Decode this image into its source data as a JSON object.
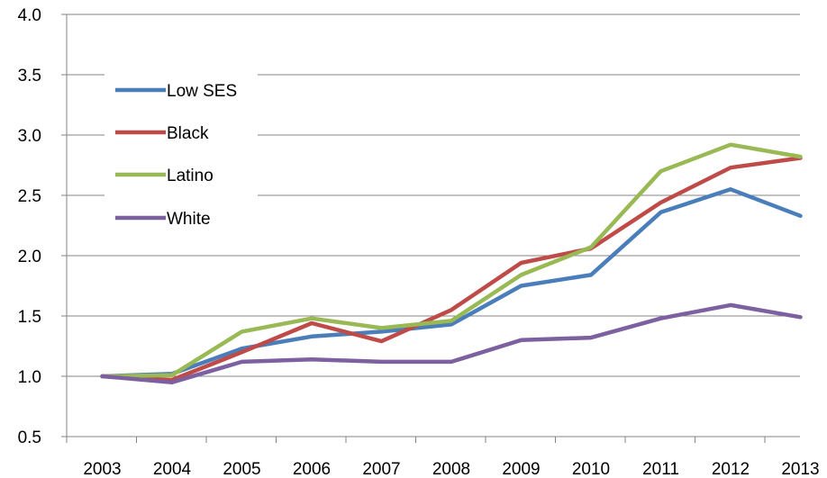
{
  "chart_data": {
    "type": "line",
    "title": "",
    "xlabel": "",
    "ylabel": "",
    "categories": [
      "2003",
      "2004",
      "2005",
      "2006",
      "2007",
      "2008",
      "2009",
      "2010",
      "2011",
      "2012",
      "2013"
    ],
    "ylim": [
      0.5,
      4.0
    ],
    "yticks": [
      "0.5",
      "1.0",
      "1.5",
      "2.0",
      "2.5",
      "3.0",
      "3.5",
      "4.0"
    ],
    "grid": true,
    "legend_position": "top-left",
    "series": [
      {
        "name": "Low SES",
        "color": "#4A7EBB",
        "values": [
          1.0,
          1.02,
          1.23,
          1.33,
          1.37,
          1.43,
          1.75,
          1.84,
          2.36,
          2.55,
          2.33
        ]
      },
      {
        "name": "Black",
        "color": "#BE4B48",
        "values": [
          1.0,
          0.97,
          1.2,
          1.44,
          1.29,
          1.55,
          1.94,
          2.06,
          2.44,
          2.73,
          2.81
        ]
      },
      {
        "name": "Latino",
        "color": "#98B954",
        "values": [
          1.0,
          1.01,
          1.37,
          1.48,
          1.4,
          1.46,
          1.84,
          2.07,
          2.7,
          2.92,
          2.82
        ]
      },
      {
        "name": "White",
        "color": "#7D60A0",
        "values": [
          1.0,
          0.95,
          1.12,
          1.14,
          1.12,
          1.12,
          1.3,
          1.32,
          1.48,
          1.59,
          1.49
        ]
      }
    ]
  }
}
